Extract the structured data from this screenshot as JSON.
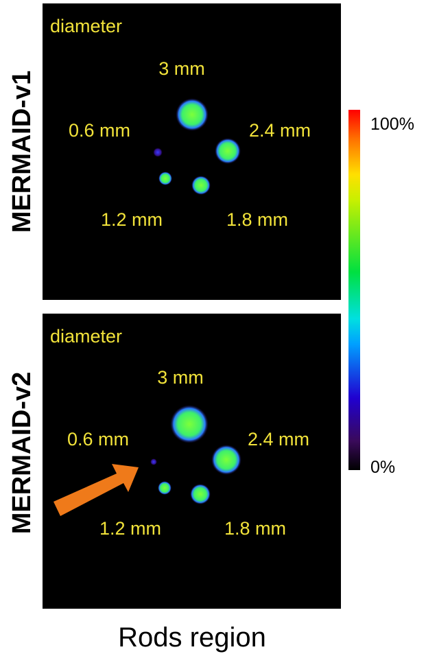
{
  "panels": [
    {
      "label": "MERMAID-v1",
      "title": "diameter",
      "rods": [
        "3 mm",
        "0.6 mm",
        "2.4 mm",
        "1.2 mm",
        "1.8 mm"
      ]
    },
    {
      "label": "MERMAID-v2",
      "title": "diameter",
      "rods": [
        "3 mm",
        "0.6 mm",
        "2.4 mm",
        "1.2 mm",
        "1.8 mm"
      ]
    }
  ],
  "colorbar": {
    "max_label": "100%",
    "min_label": "0%"
  },
  "caption": "Rods region"
}
